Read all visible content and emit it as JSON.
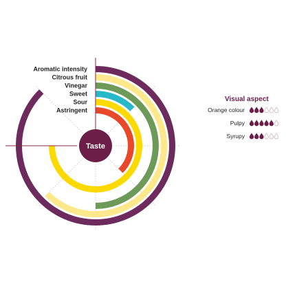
{
  "chart_data": {
    "type": "radial-bar",
    "center_label": "Taste",
    "scale_max": 8,
    "categories": [
      "Aromatic intensity",
      "Citrous fruit",
      "Vinegar",
      "Sweet",
      "Sour",
      "Astringent"
    ],
    "values": [
      7,
      5,
      4,
      1,
      6,
      3
    ],
    "colors": [
      "#6d2a5d",
      "#fde98b",
      "#6e9a59",
      "#29b8c9",
      "#fcd900",
      "#e8492a"
    ],
    "series_name": ""
  },
  "visual_aspect": {
    "title": "Visual aspect",
    "max": 6,
    "items": [
      {
        "label": "Orange colour",
        "value": 3
      },
      {
        "label": "Pulpy",
        "value": 5
      },
      {
        "label": "Syrupy",
        "value": 3
      }
    ],
    "fill_color": "#6d1e48"
  }
}
